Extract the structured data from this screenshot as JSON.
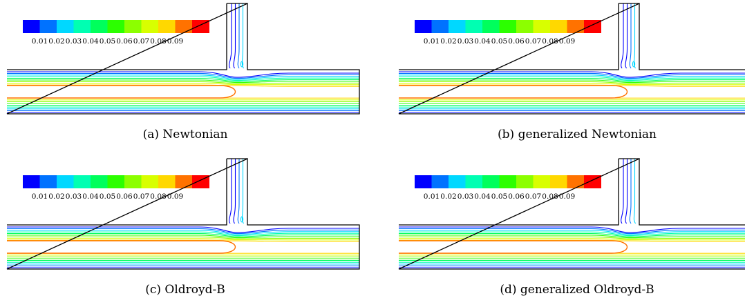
{
  "colorbar": {
    "colors": [
      "#0000ff",
      "#0072ff",
      "#00d8ff",
      "#00ffb2",
      "#00ff5c",
      "#2cff00",
      "#8cff00",
      "#d8ff00",
      "#ffd800",
      "#ff7200",
      "#ff0000"
    ],
    "labels": [
      "0.01",
      "0.02",
      "0.03",
      "0.04",
      "0.05",
      "0.06",
      "0.07",
      "0.08",
      "0.09"
    ]
  },
  "panels": [
    {
      "caption": "(a)  Newtonian",
      "vortex": true
    },
    {
      "caption": "(b)  generalized Newtonian",
      "vortex": true
    },
    {
      "caption": "(c)  Oldroyd-B",
      "vortex": true
    },
    {
      "caption": "(d)  generalized Oldroyd-B",
      "vortex": false
    }
  ]
}
